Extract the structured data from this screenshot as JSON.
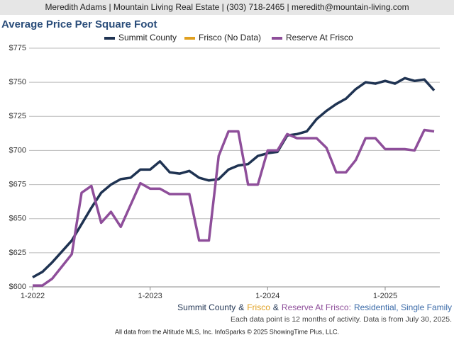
{
  "header": "Meredith Adams | Mountain Living Real Estate | (303) 718-2465 | meredith@mountain-living.com",
  "chart_data": {
    "type": "line",
    "title": "Average Price Per Square Foot",
    "categories": [
      "1-2022",
      null,
      null,
      null,
      null,
      null,
      null,
      null,
      null,
      null,
      null,
      null,
      "1-2023",
      null,
      null,
      null,
      null,
      null,
      null,
      null,
      null,
      null,
      null,
      null,
      "1-2024",
      null,
      null,
      null,
      null,
      null,
      null,
      null,
      null,
      null,
      null,
      null,
      "1-2025",
      null,
      null,
      null,
      null,
      null
    ],
    "series": [
      {
        "name": "Summit County",
        "color": "#1f3352",
        "values": [
          607,
          611,
          618,
          626,
          634,
          646,
          658,
          669,
          675,
          679,
          680,
          686,
          686,
          692,
          684,
          683,
          685,
          680,
          678,
          679,
          686,
          689,
          690,
          696,
          698,
          699,
          711,
          712,
          714,
          723,
          729,
          734,
          738,
          745,
          750,
          749,
          751,
          749,
          753,
          751,
          752,
          744
        ]
      },
      {
        "name": "Frisco (No Data)",
        "color": "#e0a020",
        "values": [
          null,
          null,
          null,
          null,
          null,
          null,
          null,
          null,
          null,
          null,
          null,
          null,
          null,
          null,
          null,
          null,
          null,
          null,
          null,
          null,
          null,
          null,
          null,
          null,
          null,
          null,
          null,
          null,
          null,
          null,
          null,
          null,
          null,
          null,
          null,
          null,
          null,
          null,
          null,
          null,
          null,
          null
        ]
      },
      {
        "name": "Reserve At Frisco",
        "color": "#8e4e9a",
        "values": [
          601,
          601,
          606,
          615,
          624,
          669,
          674,
          647,
          655,
          644,
          660,
          676,
          672,
          672,
          668,
          668,
          668,
          634,
          634,
          696,
          714,
          714,
          675,
          675,
          700,
          700,
          712,
          709,
          709,
          709,
          702,
          684,
          684,
          693,
          709,
          709,
          701,
          701,
          701,
          700,
          715,
          714
        ]
      }
    ],
    "ylim": [
      600,
      775
    ],
    "yticks": [
      {
        "value": 600,
        "label": "$600"
      },
      {
        "value": 625,
        "label": "$625"
      },
      {
        "value": 650,
        "label": "$650"
      },
      {
        "value": 675,
        "label": "$675"
      },
      {
        "value": 700,
        "label": "$700"
      },
      {
        "value": 725,
        "label": "$725"
      },
      {
        "value": 750,
        "label": "$750"
      },
      {
        "value": 775,
        "label": "$775"
      }
    ],
    "grid": true,
    "caption_parts": [
      {
        "text": "Summit County",
        "color": "#1f3352"
      },
      {
        "text": "&",
        "color": "#1f3352"
      },
      {
        "text": "Frisco",
        "color": "#e0a020"
      },
      {
        "text": "&",
        "color": "#1f3352"
      },
      {
        "text": "Reserve At Frisco:",
        "color": "#8e4e9a"
      },
      {
        "text": "Residential, Single Family",
        "color": "#3a6aa8"
      }
    ],
    "note": "Each data point is 12 months of activity. Data is from July 30, 2025.",
    "source": "All data from the Altitude MLS, Inc. InfoSparks © 2025 ShowingTime Plus, LLC."
  }
}
